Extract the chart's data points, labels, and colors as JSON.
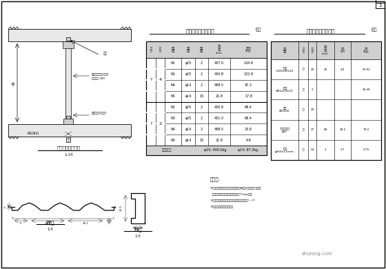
{
  "bg_color": "#ffffff",
  "table1_title": "格栅纵筋配置统计表",
  "table1_subtitle": "?单拱",
  "table2_title": "格栅架主筋件数量表",
  "table2_subtitle": "?单拱",
  "section_title": "系向钢格墙实立图",
  "section_scale": "1:14",
  "note_title": "说明：",
  "notes": [
    "?1未特别说明，纵筋系用钢筋类别属A级别(光面钢筋)，余年",
    "  平均厚度钢筋（辅筋厚度不得小于??mm的）",
    "?2特殊的地区（平面钢筋规格设计厚度要求为?~??",
    "?3未要大于设置未选参目！"
  ],
  "profile1_label": "??筋",
  "profile1_scale": "1:5",
  "profile2_label": "??筋",
  "profile2_scale": "1:5"
}
